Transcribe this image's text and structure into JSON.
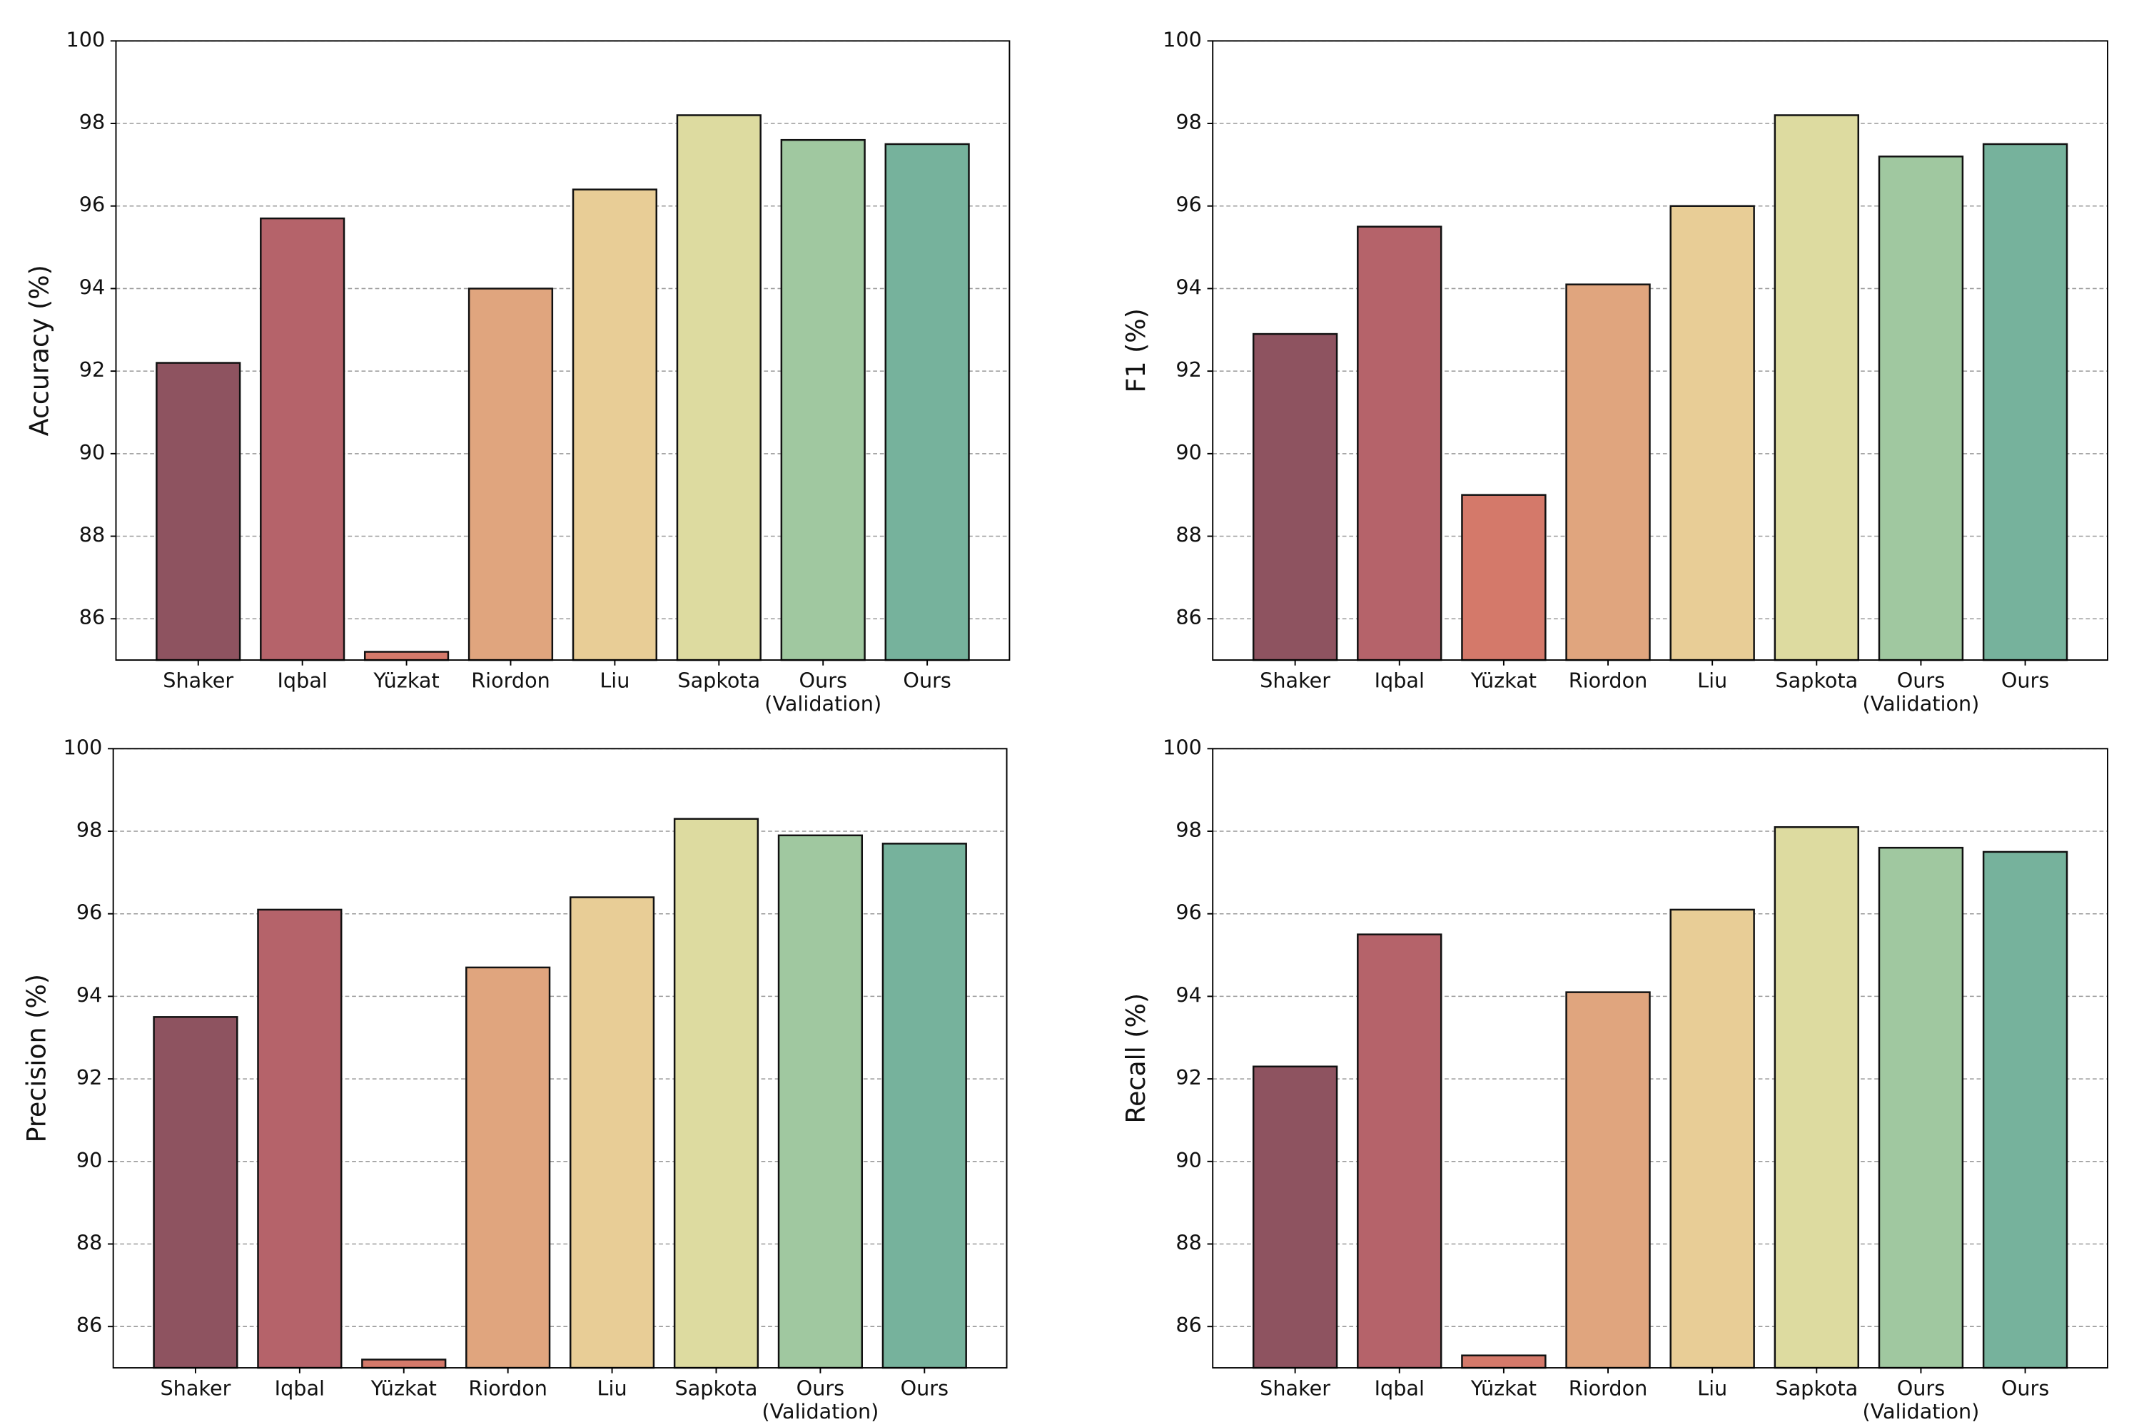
{
  "chart_data": [
    {
      "type": "bar",
      "y_label": "Accuracy (%)",
      "categories": [
        "Shaker",
        "Iqbal",
        "Yüzkat",
        "Riordon",
        "Liu",
        "Sapkota",
        "Ours\n(Validation)",
        "Ours"
      ],
      "values": [
        92.2,
        95.7,
        85.2,
        94.0,
        96.4,
        98.2,
        97.6,
        97.5
      ],
      "colors": [
        "#8e5360",
        "#b5636a",
        "#d4796a",
        "#e0a57e",
        "#e8cd96",
        "#dddba0",
        "#a0c8a0",
        "#76b29c"
      ],
      "ylim": [
        85,
        100
      ],
      "yticks": [
        86,
        88,
        90,
        92,
        94,
        96,
        98,
        100
      ],
      "grid": true
    },
    {
      "type": "bar",
      "y_label": "F1 (%)",
      "categories": [
        "Shaker",
        "Iqbal",
        "Yüzkat",
        "Riordon",
        "Liu",
        "Sapkota",
        "Ours\n(Validation)",
        "Ours"
      ],
      "values": [
        92.9,
        95.5,
        89.0,
        94.1,
        96.0,
        98.2,
        97.2,
        97.5
      ],
      "colors": [
        "#8e5360",
        "#b5636a",
        "#d4796a",
        "#e0a57e",
        "#e8cd96",
        "#dddba0",
        "#a0c8a0",
        "#76b29c"
      ],
      "ylim": [
        85,
        100
      ],
      "yticks": [
        86,
        88,
        90,
        92,
        94,
        96,
        98,
        100
      ],
      "grid": true
    },
    {
      "type": "bar",
      "y_label": "Precision (%)",
      "categories": [
        "Shaker",
        "Iqbal",
        "Yüzkat",
        "Riordon",
        "Liu",
        "Sapkota",
        "Ours\n(Validation)",
        "Ours"
      ],
      "values": [
        93.5,
        96.1,
        85.2,
        94.7,
        96.4,
        98.3,
        97.9,
        97.7
      ],
      "colors": [
        "#8e5360",
        "#b5636a",
        "#d4796a",
        "#e0a57e",
        "#e8cd96",
        "#dddba0",
        "#a0c8a0",
        "#76b29c"
      ],
      "ylim": [
        85,
        100
      ],
      "yticks": [
        86,
        88,
        90,
        92,
        94,
        96,
        98,
        100
      ],
      "grid": true
    },
    {
      "type": "bar",
      "y_label": "Recall (%)",
      "categories": [
        "Shaker",
        "Iqbal",
        "Yüzkat",
        "Riordon",
        "Liu",
        "Sapkota",
        "Ours\n(Validation)",
        "Ours"
      ],
      "values": [
        92.3,
        95.5,
        85.3,
        94.1,
        96.1,
        98.1,
        97.6,
        97.5
      ],
      "colors": [
        "#8e5360",
        "#b5636a",
        "#d4796a",
        "#e0a57e",
        "#e8cd96",
        "#dddba0",
        "#a0c8a0",
        "#76b29c"
      ],
      "ylim": [
        85,
        100
      ],
      "yticks": [
        86,
        88,
        90,
        92,
        94,
        96,
        98,
        100
      ],
      "grid": true
    }
  ]
}
